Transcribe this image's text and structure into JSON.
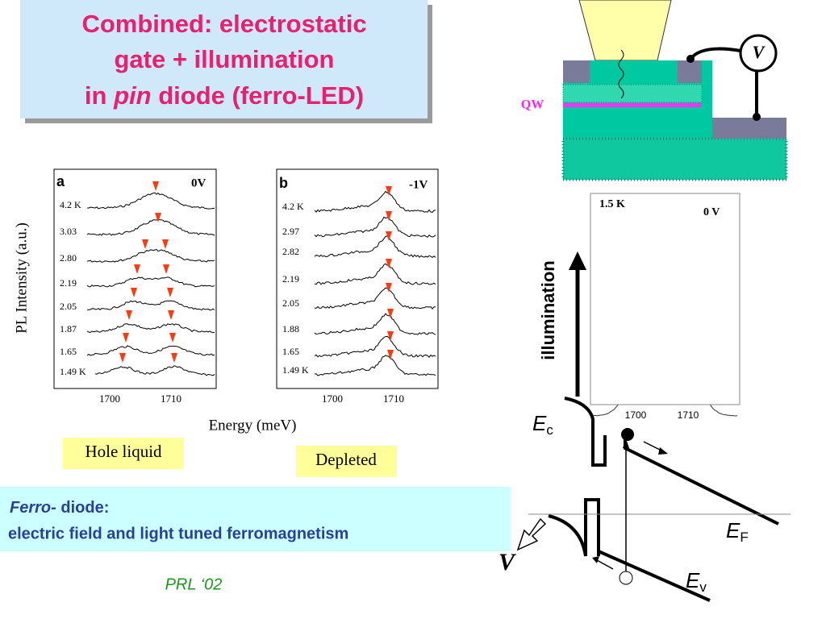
{
  "title": {
    "line1": "Combined: electrostatic",
    "line2": "gate  +  illumination",
    "line3a": "in",
    "line3b": "pin",
    "line3c": "diode (ferro-LED)"
  },
  "panel_a": {
    "letter": "a",
    "bias": "0V",
    "traces": [
      "4.2 K",
      "3.03",
      "2.80",
      "2.19",
      "2.05",
      "1.87",
      "1.65",
      "1.49 K"
    ],
    "xticks": [
      "1700",
      "1710"
    ]
  },
  "panel_b": {
    "letter": "b",
    "bias": "-1V",
    "traces": [
      "4.2 K",
      "2.97",
      "2.82",
      "2.19",
      "2.05",
      "1.88",
      "1.65",
      "1.49 K"
    ],
    "xticks": [
      "1700",
      "1710"
    ]
  },
  "y_label": "PL Intensity (a.u.)",
  "x_label": "Energy (meV)",
  "tag_a": "Hole liquid",
  "tag_b": "Depleted",
  "summary": {
    "em": "Ferro-",
    "rest": "diode:",
    "line2": "electric field and light tuned ferromagnetism"
  },
  "citation": "PRL ‘02",
  "device": {
    "qw": "QW",
    "meter": "V"
  },
  "panel_c": {
    "temp": "1.5 K",
    "bias": "0 V",
    "xticks": [
      "1700",
      "1710"
    ],
    "arrow": "illumination"
  },
  "band": {
    "ec": "E",
    "ec_sub": "c",
    "ef": "E",
    "ef_sub": "F",
    "ev": "E",
    "ev_sub": "v",
    "v": "V"
  }
}
